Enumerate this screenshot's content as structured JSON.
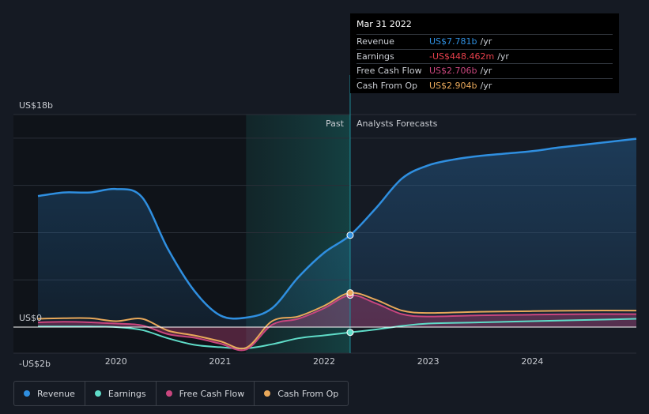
{
  "chart_data": {
    "type": "area",
    "title": "",
    "ylabel": "",
    "y_unit": "US$ b",
    "ylim": [
      -2,
      18
    ],
    "xlim": [
      2019.25,
      2025.0
    ],
    "y_ticks": [
      {
        "value": 18,
        "label": "US$18b"
      },
      {
        "value": 0,
        "label": "US$0"
      },
      {
        "value": -2,
        "label": "-US$2b"
      }
    ],
    "x_ticks": [
      {
        "value": 2020,
        "label": "2020"
      },
      {
        "value": 2021,
        "label": "2021"
      },
      {
        "value": 2022,
        "label": "2022"
      },
      {
        "value": 2023,
        "label": "2023"
      },
      {
        "value": 2024,
        "label": "2024"
      }
    ],
    "divider_x": 2022.25,
    "region_labels": {
      "past": "Past",
      "forecast": "Analysts Forecasts"
    },
    "highlight_start_x": 2021.25,
    "series": [
      {
        "name": "Revenue",
        "color": "#2f8fe0",
        "fill": true,
        "x": [
          2019.25,
          2019.5,
          2019.75,
          2020.0,
          2020.25,
          2020.5,
          2020.75,
          2021.0,
          2021.25,
          2021.5,
          2021.75,
          2022.0,
          2022.25,
          2022.5,
          2022.75,
          2023.0,
          2023.25,
          2023.5,
          2023.75,
          2024.0,
          2024.25,
          2024.5,
          2024.75,
          2025.0
        ],
        "values": [
          11.1,
          11.4,
          11.4,
          11.7,
          11.0,
          6.6,
          3.1,
          1.0,
          0.8,
          1.6,
          4.2,
          6.3,
          7.781,
          10.1,
          12.6,
          13.7,
          14.2,
          14.5,
          14.7,
          14.9,
          15.2,
          15.45,
          15.7,
          15.95
        ]
      },
      {
        "name": "Earnings",
        "color": "#5fdcc8",
        "fill": false,
        "x": [
          2019.25,
          2019.5,
          2019.75,
          2020.0,
          2020.25,
          2020.5,
          2020.75,
          2021.0,
          2021.25,
          2021.5,
          2021.75,
          2022.0,
          2022.25,
          2022.5,
          2022.75,
          2023.0,
          2023.5,
          2024.0,
          2024.5,
          2025.0
        ],
        "values": [
          0.05,
          0.05,
          0.05,
          0.0,
          -0.25,
          -0.95,
          -1.5,
          -1.7,
          -1.8,
          -1.45,
          -0.95,
          -0.7,
          -0.448,
          -0.2,
          0.1,
          0.3,
          0.4,
          0.5,
          0.6,
          0.7
        ]
      },
      {
        "name": "Free Cash Flow",
        "color": "#c9467e",
        "fill": true,
        "x": [
          2019.25,
          2019.5,
          2019.75,
          2020.0,
          2020.25,
          2020.5,
          2020.75,
          2021.0,
          2021.25,
          2021.5,
          2021.75,
          2022.0,
          2022.25,
          2022.5,
          2022.75,
          2023.0,
          2023.5,
          2024.0,
          2024.5,
          2025.0
        ],
        "values": [
          0.4,
          0.45,
          0.4,
          0.3,
          0.15,
          -0.6,
          -0.9,
          -1.4,
          -1.9,
          0.2,
          0.7,
          1.6,
          2.706,
          2.0,
          1.1,
          0.9,
          1.0,
          1.05,
          1.1,
          1.1
        ]
      },
      {
        "name": "Cash From Op",
        "color": "#e8a85a",
        "fill": false,
        "x": [
          2019.25,
          2019.5,
          2019.75,
          2020.0,
          2020.25,
          2020.5,
          2020.75,
          2021.0,
          2021.25,
          2021.5,
          2021.75,
          2022.0,
          2022.25,
          2022.5,
          2022.75,
          2023.0,
          2023.5,
          2024.0,
          2024.5,
          2025.0
        ],
        "values": [
          0.7,
          0.75,
          0.75,
          0.5,
          0.7,
          -0.3,
          -0.7,
          -1.2,
          -1.75,
          0.5,
          0.9,
          1.8,
          2.904,
          2.3,
          1.4,
          1.2,
          1.3,
          1.35,
          1.4,
          1.4
        ]
      }
    ]
  },
  "tooltip": {
    "date": "Mar 31 2022",
    "rows": [
      {
        "label": "Revenue",
        "value": "US$7.781b",
        "unit": "/yr",
        "color": "#2f8fe0"
      },
      {
        "label": "Earnings",
        "value": "-US$448.462m",
        "unit": "/yr",
        "color": "#e8404c"
      },
      {
        "label": "Free Cash Flow",
        "value": "US$2.706b",
        "unit": "/yr",
        "color": "#c9467e"
      },
      {
        "label": "Cash From Op",
        "value": "US$2.904b",
        "unit": "/yr",
        "color": "#e8a85a"
      }
    ]
  },
  "legend": [
    {
      "label": "Revenue",
      "color": "#2f8fe0"
    },
    {
      "label": "Earnings",
      "color": "#5fdcc8"
    },
    {
      "label": "Free Cash Flow",
      "color": "#c9467e"
    },
    {
      "label": "Cash From Op",
      "color": "#e8a85a"
    }
  ]
}
